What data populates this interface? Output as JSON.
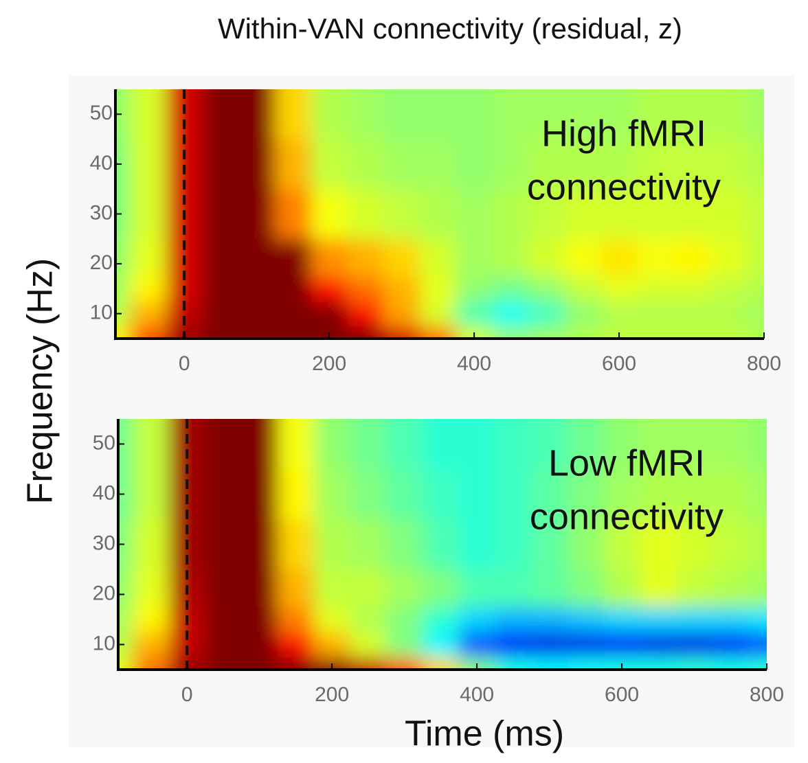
{
  "title": "Within-VAN connectivity (residual, z)",
  "ylabel": "Frequency (Hz)",
  "xlabel": "Time (ms)",
  "chart_data": [
    {
      "type": "heatmap",
      "annotation": [
        "High fMRI",
        "connectivity"
      ],
      "x": [
        -100,
        -50,
        0,
        50,
        100,
        150,
        200,
        250,
        300,
        350,
        400,
        450,
        500,
        550,
        600,
        650,
        700,
        750,
        800
      ],
      "y": [
        5,
        10,
        15,
        20,
        30,
        40,
        50
      ],
      "z": [
        [
          0.8,
          1.8,
          2.8,
          3.5,
          3.5,
          3.5,
          3.5,
          3.2,
          2.5,
          1.6,
          0.5,
          0.1,
          0.2,
          0.3,
          0.4,
          0.4,
          0.4,
          0.4,
          0.3
        ],
        [
          0.3,
          1.2,
          2.6,
          3.5,
          3.5,
          3.5,
          3.0,
          2.2,
          1.3,
          0.5,
          -0.3,
          -0.7,
          -0.4,
          0.1,
          0.3,
          0.3,
          0.3,
          0.3,
          0.2
        ],
        [
          0.2,
          0.8,
          2.5,
          3.5,
          3.5,
          3.5,
          2.2,
          1.6,
          1.2,
          0.6,
          0.1,
          -0.1,
          0.1,
          0.4,
          0.6,
          0.5,
          0.5,
          0.4,
          0.3
        ],
        [
          0.1,
          0.6,
          2.5,
          3.5,
          3.5,
          3.0,
          1.4,
          1.2,
          1.0,
          0.5,
          0.2,
          0.3,
          0.5,
          0.7,
          0.9,
          0.7,
          0.8,
          0.6,
          0.4
        ],
        [
          0.0,
          0.5,
          2.5,
          3.5,
          3.5,
          1.5,
          0.7,
          0.5,
          0.4,
          0.3,
          0.2,
          0.3,
          0.4,
          0.5,
          0.5,
          0.5,
          0.5,
          0.5,
          0.4
        ],
        [
          0.0,
          0.5,
          2.5,
          3.5,
          3.2,
          1.2,
          0.4,
          0.3,
          0.2,
          0.2,
          0.1,
          0.2,
          0.3,
          0.3,
          0.3,
          0.4,
          0.4,
          0.4,
          0.3
        ],
        [
          0.1,
          0.5,
          2.5,
          3.5,
          3.0,
          1.0,
          0.3,
          0.2,
          0.1,
          0.1,
          0.1,
          0.2,
          0.2,
          0.2,
          0.2,
          0.3,
          0.3,
          0.3,
          0.2
        ]
      ],
      "zlim": [
        -3,
        3
      ],
      "colormap": "jet",
      "vline": 0,
      "xlim": [
        -95,
        800
      ],
      "ylim": [
        5,
        55
      ],
      "xticks": [
        0,
        200,
        400,
        600,
        800
      ],
      "yticks": [
        10,
        20,
        30,
        40,
        50
      ]
    },
    {
      "type": "heatmap",
      "annotation": [
        "Low fMRI",
        "connectivity"
      ],
      "x": [
        -100,
        -50,
        0,
        50,
        100,
        150,
        200,
        250,
        300,
        350,
        400,
        450,
        500,
        550,
        600,
        650,
        700,
        750,
        800
      ],
      "y": [
        5,
        10,
        15,
        20,
        30,
        40,
        50
      ],
      "z": [
        [
          0.6,
          1.6,
          2.8,
          3.5,
          3.5,
          3.5,
          3.2,
          2.6,
          1.8,
          1.0,
          0.0,
          -0.6,
          -0.8,
          -0.7,
          -0.6,
          -0.6,
          -0.5,
          -0.6,
          -0.5
        ],
        [
          0.3,
          1.2,
          2.6,
          3.2,
          3.0,
          2.2,
          1.2,
          0.5,
          0.0,
          -0.8,
          -1.8,
          -2.3,
          -2.4,
          -2.4,
          -2.3,
          -2.4,
          -2.4,
          -2.3,
          -1.8
        ],
        [
          0.2,
          0.8,
          2.6,
          3.3,
          3.0,
          1.5,
          0.6,
          0.3,
          0.0,
          -0.5,
          -1.0,
          -1.2,
          -1.2,
          -1.1,
          -1.0,
          -1.0,
          -1.0,
          -1.0,
          -0.9
        ],
        [
          0.1,
          0.6,
          2.7,
          3.5,
          3.2,
          1.2,
          0.4,
          0.4,
          0.2,
          0.0,
          -0.3,
          -0.3,
          -0.2,
          0.0,
          0.3,
          0.6,
          0.4,
          0.3,
          0.2
        ],
        [
          0.0,
          0.5,
          2.8,
          3.5,
          3.3,
          1.0,
          0.3,
          0.2,
          0.0,
          -0.3,
          -0.5,
          -0.4,
          -0.2,
          0.1,
          0.4,
          0.6,
          0.5,
          0.4,
          0.3
        ],
        [
          -0.1,
          0.4,
          2.8,
          3.5,
          3.2,
          0.8,
          0.2,
          0.0,
          -0.2,
          -0.4,
          -0.5,
          -0.4,
          -0.2,
          0.0,
          0.2,
          0.3,
          0.3,
          0.3,
          0.2
        ],
        [
          -0.1,
          0.4,
          2.8,
          3.5,
          3.0,
          0.7,
          0.1,
          -0.1,
          -0.3,
          -0.5,
          -0.5,
          -0.4,
          -0.3,
          -0.1,
          0.1,
          0.2,
          0.2,
          0.2,
          0.1
        ]
      ],
      "zlim": [
        -3,
        3
      ],
      "colormap": "jet",
      "vline": 0,
      "xlim": [
        -95,
        800
      ],
      "ylim": [
        5,
        55
      ],
      "xticks": [
        0,
        200,
        400,
        600,
        800
      ],
      "yticks": [
        10,
        20,
        30,
        40,
        50
      ]
    }
  ]
}
